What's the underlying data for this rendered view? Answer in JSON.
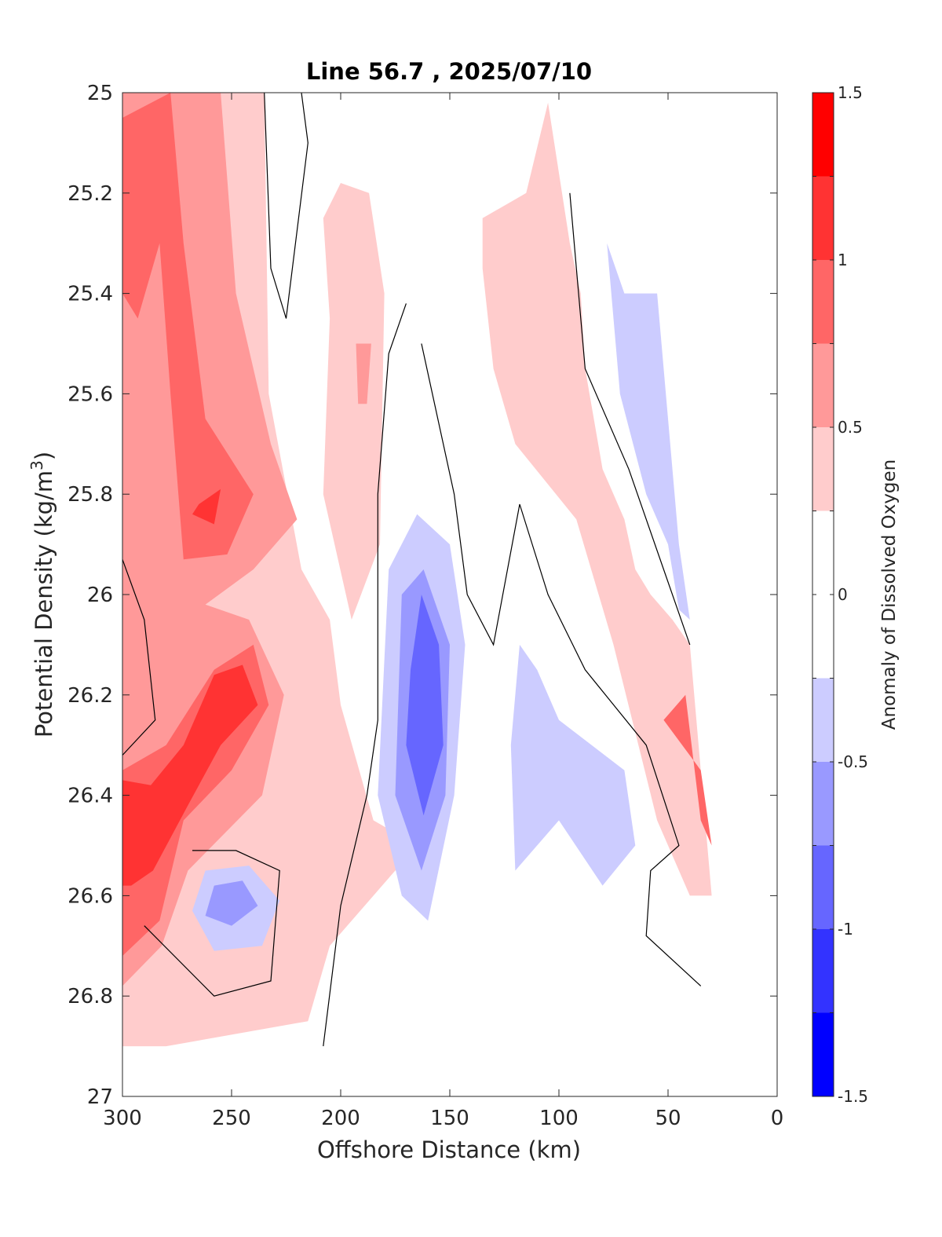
{
  "chart_data": {
    "type": "contour",
    "title": "Line 56.7 , 2025/07/10",
    "xlabel": "Offshore Distance (km)",
    "ylabel": "Potential Density (kg/m",
    "ylabel_superscript": "3",
    "ylabel_suffix": ")",
    "xlim": [
      300,
      0
    ],
    "ylim": [
      25,
      27
    ],
    "x_reversed": true,
    "y_reversed": true,
    "xticks": [
      "300",
      "250",
      "200",
      "150",
      "100",
      "50",
      "0"
    ],
    "yticks": [
      "25",
      "25.2",
      "25.4",
      "25.6",
      "25.8",
      "26",
      "26.2",
      "26.4",
      "26.6",
      "26.8",
      "27"
    ],
    "grid": false,
    "colorbar": {
      "label": "Anomaly of Dissolved Oxygen",
      "range": [
        -1.5,
        1.5
      ],
      "tick_labels": [
        "1.5",
        "1",
        "0.5",
        "0",
        "-0.5",
        "-1",
        "-1.5"
      ],
      "levels": [
        {
          "from": 1.25,
          "to": 1.5,
          "color": "#ff0000"
        },
        {
          "from": 1.0,
          "to": 1.25,
          "color": "#ff3333"
        },
        {
          "from": 0.75,
          "to": 1.0,
          "color": "#ff6666"
        },
        {
          "from": 0.5,
          "to": 0.75,
          "color": "#ff9999"
        },
        {
          "from": 0.25,
          "to": 0.5,
          "color": "#ffcccc"
        },
        {
          "from": 0.0,
          "to": 0.25,
          "color": "#ffffff"
        },
        {
          "from": -0.25,
          "to": 0.0,
          "color": "#ffffff"
        },
        {
          "from": -0.5,
          "to": -0.25,
          "color": "#ccccff"
        },
        {
          "from": -0.75,
          "to": -0.5,
          "color": "#9999ff"
        },
        {
          "from": -1.0,
          "to": -0.75,
          "color": "#6666ff"
        },
        {
          "from": -1.25,
          "to": -1.0,
          "color": "#3333ff"
        },
        {
          "from": -1.5,
          "to": -1.25,
          "color": "#0000ff"
        }
      ]
    },
    "regions": [
      {
        "name": "offshore-positive-band",
        "level": 0.25,
        "color": "#ffcccc",
        "points": [
          [
            300,
            25
          ],
          [
            235,
            25
          ],
          [
            233,
            25.6
          ],
          [
            218,
            25.95
          ],
          [
            205,
            26.05
          ],
          [
            200,
            26.22
          ],
          [
            185,
            26.45
          ],
          [
            165,
            26.5
          ],
          [
            205,
            26.7
          ],
          [
            215,
            26.85
          ],
          [
            280,
            26.9
          ],
          [
            300,
            26.9
          ]
        ]
      },
      {
        "name": "offshore-core-0.5",
        "level": 0.5,
        "color": "#ff9999",
        "points": [
          [
            300,
            25
          ],
          [
            255,
            25
          ],
          [
            248,
            25.4
          ],
          [
            232,
            25.7
          ],
          [
            220,
            25.85
          ],
          [
            240,
            25.95
          ],
          [
            262,
            26.02
          ],
          [
            242,
            26.05
          ],
          [
            226,
            26.2
          ],
          [
            236,
            26.4
          ],
          [
            270,
            26.55
          ],
          [
            282,
            26.7
          ],
          [
            300,
            26.78
          ]
        ]
      },
      {
        "name": "offshore-core-0.75",
        "level": 0.75,
        "color": "#ff6666",
        "points": [
          [
            300,
            25.05
          ],
          [
            278,
            25
          ],
          [
            272,
            25.3
          ],
          [
            262,
            25.65
          ],
          [
            240,
            25.8
          ],
          [
            252,
            25.92
          ],
          [
            272,
            25.93
          ],
          [
            278,
            25.6
          ],
          [
            283,
            25.3
          ],
          [
            293,
            25.45
          ],
          [
            300,
            25.4
          ]
        ]
      },
      {
        "name": "offshore-core-1.0",
        "level": 1.0,
        "color": "#ff3333",
        "points": [
          [
            265,
            25.82
          ],
          [
            255,
            25.79
          ],
          [
            258,
            25.86
          ],
          [
            268,
            25.84
          ]
        ]
      },
      {
        "name": "deep-positive-core",
        "level": 0.75,
        "color": "#ff6666",
        "points": [
          [
            300,
            26.35
          ],
          [
            280,
            26.3
          ],
          [
            258,
            26.15
          ],
          [
            240,
            26.1
          ],
          [
            233,
            26.22
          ],
          [
            250,
            26.35
          ],
          [
            272,
            26.45
          ],
          [
            283,
            26.65
          ],
          [
            300,
            26.72
          ]
        ]
      },
      {
        "name": "deep-positive-core-1.0",
        "level": 1.0,
        "color": "#ff3333",
        "points": [
          [
            300,
            26.37
          ],
          [
            287,
            26.38
          ],
          [
            272,
            26.3
          ],
          [
            258,
            26.16
          ],
          [
            245,
            26.14
          ],
          [
            238,
            26.22
          ],
          [
            255,
            26.3
          ],
          [
            270,
            26.42
          ],
          [
            286,
            26.55
          ],
          [
            296,
            26.58
          ],
          [
            300,
            26.58
          ]
        ]
      },
      {
        "name": "inner-negative-eddy",
        "level": -0.25,
        "color": "#ccccff",
        "points": [
          [
            262,
            26.55
          ],
          [
            242,
            26.54
          ],
          [
            228,
            26.61
          ],
          [
            236,
            26.7
          ],
          [
            258,
            26.71
          ],
          [
            268,
            26.63
          ]
        ]
      },
      {
        "name": "inner-negative-eddy-0.5",
        "level": -0.5,
        "color": "#9999ff",
        "points": [
          [
            258,
            26.58
          ],
          [
            245,
            26.57
          ],
          [
            238,
            26.62
          ],
          [
            250,
            26.66
          ],
          [
            262,
            26.64
          ]
        ]
      },
      {
        "name": "midshelf-positive-tongue",
        "level": 0.25,
        "color": "#ffcccc",
        "points": [
          [
            200,
            25.18
          ],
          [
            187,
            25.2
          ],
          [
            180,
            25.4
          ],
          [
            182,
            25.9
          ],
          [
            195,
            26.05
          ],
          [
            208,
            25.8
          ],
          [
            205,
            25.45
          ],
          [
            208,
            25.25
          ]
        ]
      },
      {
        "name": "midshelf-positive-core",
        "level": 0.5,
        "color": "#ff9999",
        "points": [
          [
            193,
            25.5
          ],
          [
            186,
            25.5
          ],
          [
            188,
            25.62
          ],
          [
            192,
            25.62
          ]
        ]
      },
      {
        "name": "central-negative-core",
        "level": -0.25,
        "color": "#ccccff",
        "points": [
          [
            165,
            25.84
          ],
          [
            178,
            25.95
          ],
          [
            183,
            26.4
          ],
          [
            172,
            26.6
          ],
          [
            160,
            26.65
          ],
          [
            148,
            26.4
          ],
          [
            143,
            26.1
          ],
          [
            150,
            25.9
          ]
        ]
      },
      {
        "name": "central-negative-core-0.5",
        "level": -0.5,
        "color": "#9999ff",
        "points": [
          [
            162,
            25.95
          ],
          [
            172,
            26.0
          ],
          [
            175,
            26.4
          ],
          [
            163,
            26.55
          ],
          [
            152,
            26.4
          ],
          [
            150,
            26.1
          ]
        ]
      },
      {
        "name": "central-negative-core-0.75",
        "level": -0.75,
        "color": "#6666ff",
        "points": [
          [
            163,
            26.0
          ],
          [
            168,
            26.15
          ],
          [
            170,
            26.3
          ],
          [
            162,
            26.44
          ],
          [
            153,
            26.3
          ],
          [
            155,
            26.1
          ]
        ]
      },
      {
        "name": "shelf-positive-band",
        "level": 0.25,
        "color": "#ffcccc",
        "points": [
          [
            105,
            25.02
          ],
          [
            95,
            25.3
          ],
          [
            90,
            25.4
          ],
          [
            88,
            25.55
          ],
          [
            80,
            25.75
          ],
          [
            70,
            25.85
          ],
          [
            65,
            25.95
          ],
          [
            58,
            26.0
          ],
          [
            48,
            26.05
          ],
          [
            40,
            26.1
          ],
          [
            35,
            26.35
          ],
          [
            30,
            26.6
          ],
          [
            40,
            26.6
          ],
          [
            55,
            26.45
          ],
          [
            75,
            26.1
          ],
          [
            92,
            25.85
          ],
          [
            120,
            25.7
          ],
          [
            130,
            25.55
          ],
          [
            135,
            25.35
          ],
          [
            135,
            25.25
          ],
          [
            115,
            25.2
          ]
        ]
      },
      {
        "name": "shelf-negative-patch",
        "level": -0.25,
        "color": "#ccccff",
        "points": [
          [
            118,
            26.1
          ],
          [
            110,
            26.15
          ],
          [
            100,
            26.25
          ],
          [
            85,
            26.3
          ],
          [
            70,
            26.35
          ],
          [
            65,
            26.5
          ],
          [
            80,
            26.58
          ],
          [
            100,
            26.45
          ],
          [
            120,
            26.55
          ],
          [
            122,
            26.3
          ]
        ]
      },
      {
        "name": "nearshore-negative-strip",
        "level": -0.25,
        "color": "#ccccff",
        "points": [
          [
            78,
            25.3
          ],
          [
            70,
            25.4
          ],
          [
            55,
            25.4
          ],
          [
            50,
            25.65
          ],
          [
            45,
            25.9
          ],
          [
            40,
            26.05
          ],
          [
            45,
            26.03
          ],
          [
            50,
            25.9
          ],
          [
            60,
            25.8
          ],
          [
            72,
            25.6
          ]
        ]
      },
      {
        "name": "nearshore-positive-core",
        "level": 0.75,
        "color": "#ff6666",
        "points": [
          [
            52,
            26.25
          ],
          [
            42,
            26.2
          ],
          [
            35,
            26.45
          ],
          [
            30,
            26.5
          ],
          [
            35,
            26.35
          ]
        ]
      }
    ],
    "contour_zero": [
      [
        [
          235,
          25
        ],
        [
          232,
          25.35
        ],
        [
          225,
          25.45
        ],
        [
          215,
          25.1
        ],
        [
          218,
          25
        ]
      ],
      [
        [
          300,
          25.93
        ],
        [
          290,
          26.05
        ],
        [
          285,
          26.25
        ],
        [
          300,
          26.32
        ]
      ],
      [
        [
          268,
          26.51
        ],
        [
          248,
          26.51
        ],
        [
          228,
          26.55
        ],
        [
          232,
          26.77
        ],
        [
          258,
          26.8
        ],
        [
          290,
          26.66
        ]
      ],
      [
        [
          170,
          25.42
        ],
        [
          178,
          25.52
        ],
        [
          183,
          25.8
        ],
        [
          183,
          26.25
        ],
        [
          188,
          26.4
        ],
        [
          200,
          26.62
        ],
        [
          208,
          26.9
        ]
      ],
      [
        [
          163,
          25.5
        ],
        [
          148,
          25.8
        ],
        [
          142,
          26.0
        ],
        [
          130,
          26.1
        ],
        [
          118,
          25.82
        ],
        [
          105,
          26.0
        ],
        [
          88,
          26.15
        ],
        [
          60,
          26.3
        ],
        [
          45,
          26.5
        ],
        [
          58,
          26.55
        ],
        [
          60,
          26.68
        ],
        [
          35,
          26.78
        ]
      ],
      [
        [
          95,
          25.2
        ],
        [
          88,
          25.55
        ],
        [
          68,
          25.75
        ],
        [
          52,
          25.95
        ],
        [
          40,
          26.1
        ]
      ]
    ]
  }
}
